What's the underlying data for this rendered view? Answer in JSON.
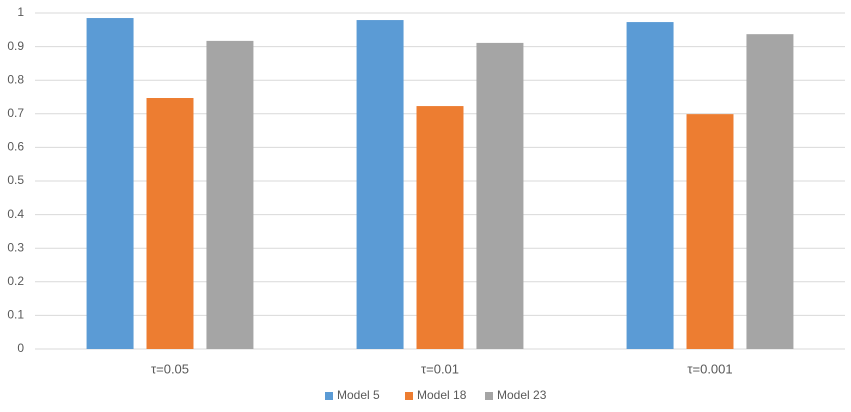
{
  "chart_data": {
    "type": "bar",
    "categories": [
      "τ=0.05",
      "τ=0.01",
      "τ=0.001"
    ],
    "series": [
      {
        "name": "Model 5",
        "color": "#5b9bd5",
        "values": [
          0.985,
          0.979,
          0.973
        ]
      },
      {
        "name": "Model 18",
        "color": "#ed7d31",
        "values": [
          0.747,
          0.723,
          0.699
        ]
      },
      {
        "name": "Model 23",
        "color": "#a5a5a5",
        "values": [
          0.917,
          0.911,
          0.937
        ]
      }
    ],
    "ylim": [
      0,
      1
    ],
    "yticks": [
      0,
      0.1,
      0.2,
      0.3,
      0.4,
      0.5,
      0.6,
      0.7,
      0.8,
      0.9,
      1
    ],
    "grid": true,
    "legend": "bottom"
  }
}
